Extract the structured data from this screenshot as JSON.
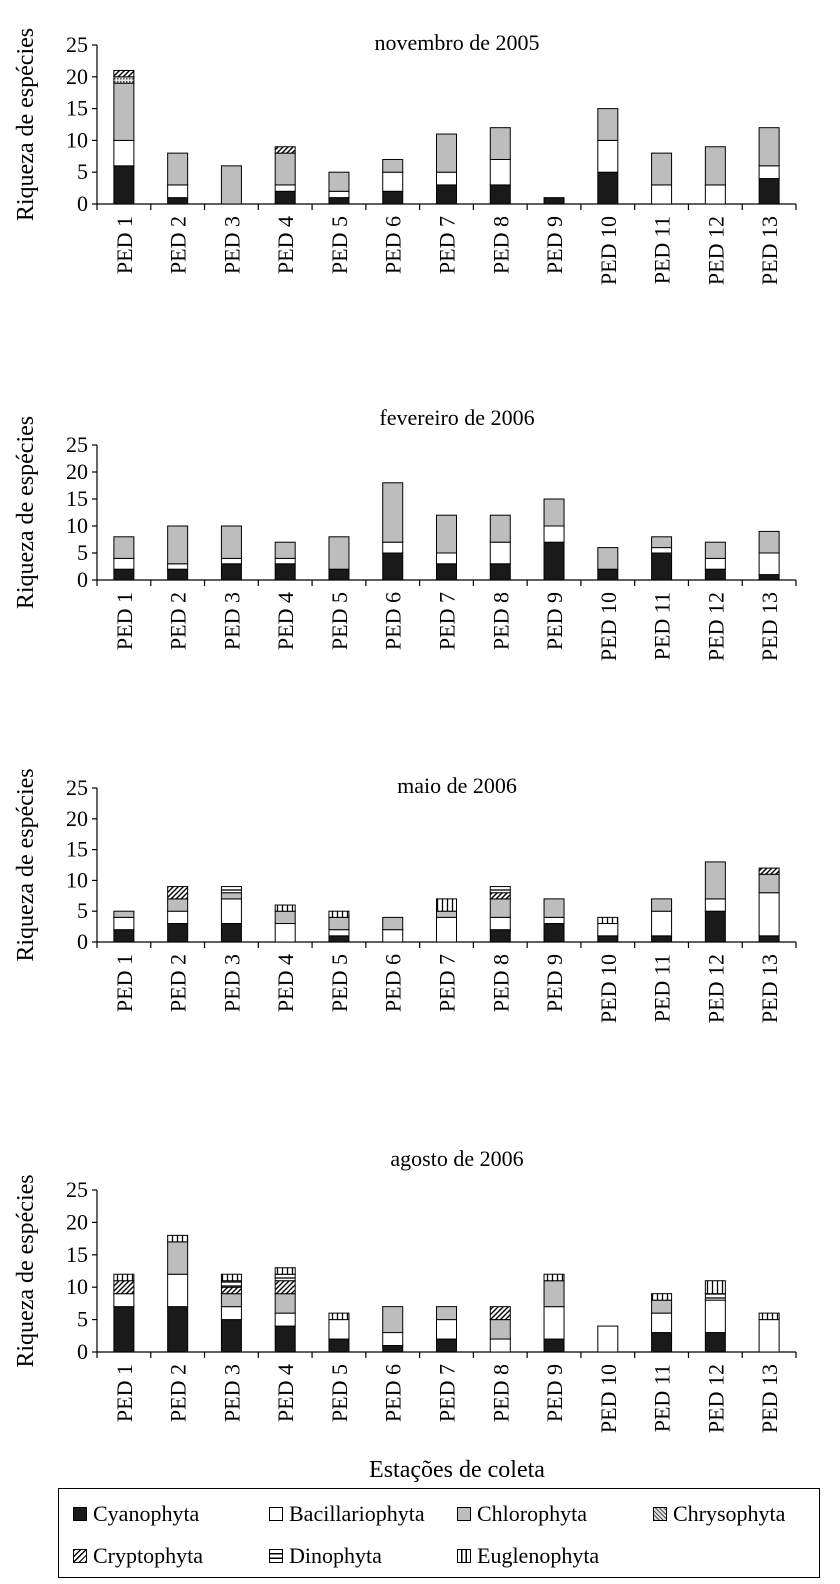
{
  "figure": {
    "xlabel": "Estações de coleta"
  },
  "phyla": [
    {
      "key": "cyano",
      "name": "Cyanophyta",
      "fill": "#1a1a1a",
      "pattern": "solid"
    },
    {
      "key": "bacil",
      "name": "Bacillariophyta",
      "fill": "#ffffff",
      "pattern": "solid"
    },
    {
      "key": "chloro",
      "name": "Chlorophyta",
      "fill": "#bdbdbd",
      "pattern": "solid"
    },
    {
      "key": "chryso",
      "name": "Chrysophyta",
      "fill": "#9a9a9a",
      "pattern": "dots"
    },
    {
      "key": "crypto",
      "name": "Cryptophyta",
      "fill": "#ffffff",
      "pattern": "diagonal"
    },
    {
      "key": "dino",
      "name": "Dinophyta",
      "fill": "#ffffff",
      "pattern": "hline"
    },
    {
      "key": "eugleno",
      "name": "Euglenophyta",
      "fill": "#ffffff",
      "pattern": "vline"
    }
  ],
  "chart_data": [
    {
      "type": "bar",
      "stacked": true,
      "title": "novembro de 2005",
      "ylabel": "Riqueza de espécies",
      "ylim": [
        0,
        25
      ],
      "yticks": [
        0,
        5,
        10,
        15,
        20,
        25
      ],
      "categories": [
        "PED 1",
        "PED 2",
        "PED 3",
        "PED 4",
        "PED 5",
        "PED 6",
        "PED 7",
        "PED 8",
        "PED 9",
        "PED 10",
        "PED 11",
        "PED 12",
        "PED 13"
      ],
      "series": [
        {
          "name": "Cyanophyta",
          "values": [
            6,
            1,
            0,
            2,
            1,
            2,
            3,
            3,
            1,
            5,
            0,
            0,
            4
          ]
        },
        {
          "name": "Bacillariophyta",
          "values": [
            4,
            2,
            0,
            1,
            1,
            3,
            2,
            4,
            0,
            5,
            3,
            3,
            2
          ]
        },
        {
          "name": "Chlorophyta",
          "values": [
            9,
            5,
            6,
            5,
            3,
            2,
            6,
            5,
            0,
            5,
            5,
            6,
            6
          ]
        },
        {
          "name": "Chrysophyta",
          "values": [
            1,
            0,
            0,
            0,
            0,
            0,
            0,
            0,
            0,
            0,
            0,
            0,
            0
          ]
        },
        {
          "name": "Cryptophyta",
          "values": [
            1,
            0,
            0,
            1,
            0,
            0,
            0,
            0,
            0,
            0,
            0,
            0,
            0
          ]
        },
        {
          "name": "Dinophyta",
          "values": [
            0,
            0,
            0,
            0,
            0,
            0,
            0,
            0,
            0,
            0,
            0,
            0,
            0
          ]
        },
        {
          "name": "Euglenophyta",
          "values": [
            0,
            0,
            0,
            0,
            0,
            0,
            0,
            0,
            0,
            0,
            0,
            0,
            0
          ]
        }
      ]
    },
    {
      "type": "bar",
      "stacked": true,
      "title": "fevereiro de 2006",
      "ylabel": "Riqueza de espécies",
      "ylim": [
        0,
        25
      ],
      "yticks": [
        0,
        5,
        10,
        15,
        20,
        25
      ],
      "categories": [
        "PED 1",
        "PED 2",
        "PED 3",
        "PED 4",
        "PED 5",
        "PED 6",
        "PED 7",
        "PED 8",
        "PED 9",
        "PED 10",
        "PED 11",
        "PED 12",
        "PED 13"
      ],
      "series": [
        {
          "name": "Cyanophyta",
          "values": [
            2,
            2,
            3,
            3,
            2,
            5,
            3,
            3,
            7,
            2,
            5,
            2,
            1
          ]
        },
        {
          "name": "Bacillariophyta",
          "values": [
            2,
            1,
            1,
            1,
            0,
            2,
            2,
            4,
            3,
            0,
            1,
            2,
            4
          ]
        },
        {
          "name": "Chlorophyta",
          "values": [
            4,
            7,
            6,
            3,
            6,
            11,
            7,
            5,
            5,
            4,
            2,
            3,
            4
          ]
        },
        {
          "name": "Chrysophyta",
          "values": [
            0,
            0,
            0,
            0,
            0,
            0,
            0,
            0,
            0,
            0,
            0,
            0,
            0
          ]
        },
        {
          "name": "Cryptophyta",
          "values": [
            0,
            0,
            0,
            0,
            0,
            0,
            0,
            0,
            0,
            0,
            0,
            0,
            0
          ]
        },
        {
          "name": "Dinophyta",
          "values": [
            0,
            0,
            0,
            0,
            0,
            0,
            0,
            0,
            0,
            0,
            0,
            0,
            0
          ]
        },
        {
          "name": "Euglenophyta",
          "values": [
            0,
            0,
            0,
            0,
            0,
            0,
            0,
            0,
            0,
            0,
            0,
            0,
            0
          ]
        }
      ]
    },
    {
      "type": "bar",
      "stacked": true,
      "title": "maio de 2006",
      "ylabel": "Riqueza de espécies",
      "ylim": [
        0,
        25
      ],
      "yticks": [
        0,
        5,
        10,
        15,
        20,
        25
      ],
      "categories": [
        "PED 1",
        "PED 2",
        "PED 3",
        "PED 4",
        "PED 5",
        "PED 6",
        "PED 7",
        "PED 8",
        "PED 9",
        "PED 10",
        "PED 11",
        "PED 12",
        "PED 13"
      ],
      "series": [
        {
          "name": "Cyanophyta",
          "values": [
            2,
            3,
            3,
            0,
            1,
            0,
            0,
            2,
            3,
            1,
            1,
            5,
            1
          ]
        },
        {
          "name": "Bacillariophyta",
          "values": [
            2,
            2,
            4,
            3,
            1,
            2,
            4,
            2,
            1,
            2,
            4,
            2,
            7
          ]
        },
        {
          "name": "Chlorophyta",
          "values": [
            1,
            2,
            1,
            2,
            2,
            2,
            1,
            3,
            3,
            0,
            2,
            6,
            3
          ]
        },
        {
          "name": "Chrysophyta",
          "values": [
            0,
            0,
            0,
            0,
            0,
            0,
            0,
            0,
            0,
            0,
            0,
            0,
            0
          ]
        },
        {
          "name": "Cryptophyta",
          "values": [
            0,
            2,
            0,
            0,
            0,
            0,
            0,
            1,
            0,
            0,
            0,
            0,
            1
          ]
        },
        {
          "name": "Dinophyta",
          "values": [
            0,
            0,
            1,
            0,
            0,
            0,
            0,
            1,
            0,
            0,
            0,
            0,
            0
          ]
        },
        {
          "name": "Euglenophyta",
          "values": [
            0,
            0,
            0,
            1,
            1,
            0,
            2,
            0,
            0,
            1,
            0,
            0,
            0
          ]
        }
      ]
    },
    {
      "type": "bar",
      "stacked": true,
      "title": "agosto de 2006",
      "ylabel": "Riqueza de espécies",
      "xlabel": "Estações de coleta",
      "ylim": [
        0,
        25
      ],
      "yticks": [
        0,
        5,
        10,
        15,
        20,
        25
      ],
      "categories": [
        "PED 1",
        "PED 2",
        "PED 3",
        "PED 4",
        "PED 5",
        "PED 6",
        "PED 7",
        "PED 8",
        "PED 9",
        "PED 10",
        "PED 11",
        "PED 12",
        "PED 13"
      ],
      "series": [
        {
          "name": "Cyanophyta",
          "values": [
            7,
            7,
            5,
            4,
            2,
            1,
            2,
            0,
            2,
            0,
            3,
            3,
            0
          ]
        },
        {
          "name": "Bacillariophyta",
          "values": [
            2,
            5,
            2,
            2,
            3,
            2,
            3,
            2,
            5,
            4,
            3,
            5,
            5
          ]
        },
        {
          "name": "Chlorophyta",
          "values": [
            0,
            5,
            2,
            3,
            0,
            4,
            2,
            3,
            4,
            0,
            2,
            0,
            0
          ]
        },
        {
          "name": "Chrysophyta",
          "values": [
            0,
            0,
            0,
            0,
            0,
            0,
            0,
            0,
            0,
            0,
            0,
            0,
            0
          ]
        },
        {
          "name": "Cryptophyta",
          "values": [
            2,
            0,
            1,
            2,
            0,
            0,
            0,
            2,
            0,
            0,
            0,
            0,
            0
          ]
        },
        {
          "name": "Dinophyta",
          "values": [
            0,
            0,
            1,
            1,
            0,
            0,
            0,
            0,
            0,
            0,
            0,
            1,
            0
          ]
        },
        {
          "name": "Euglenophyta",
          "values": [
            1,
            1,
            1,
            1,
            1,
            0,
            0,
            0,
            1,
            0,
            1,
            2,
            1
          ]
        }
      ]
    }
  ]
}
